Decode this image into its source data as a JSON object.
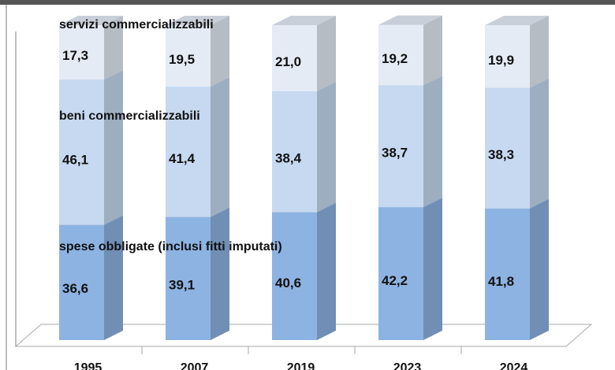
{
  "chart_data": {
    "type": "bar",
    "stacked": true,
    "style": "3d-column",
    "categories": [
      "1995",
      "2007",
      "2019",
      "2023",
      "2024"
    ],
    "series": [
      {
        "name": "spese obbligate (inclusi fitti imputati)",
        "values": [
          36.6,
          39.1,
          40.6,
          42.2,
          41.8
        ],
        "labels": [
          "36,6",
          "39,1",
          "40,6",
          "42,2",
          "41,8"
        ],
        "color": "#8DB3E2"
      },
      {
        "name": "beni commercializzabili",
        "values": [
          46.1,
          41.4,
          38.4,
          38.7,
          38.3
        ],
        "labels": [
          "46,1",
          "41,4",
          "38,4",
          "38,7",
          "38,3"
        ],
        "color": "#C6D9F1"
      },
      {
        "name": "servizi commercializzabili",
        "values": [
          17.3,
          19.5,
          21.0,
          19.2,
          19.9
        ],
        "labels": [
          "17,3",
          "19,5",
          "21,0",
          "19,2",
          "19,9"
        ],
        "color": "#E4EBF5"
      }
    ],
    "ylim": [
      0,
      100
    ],
    "title": "",
    "xlabel": "",
    "ylabel": "",
    "grid": false
  }
}
